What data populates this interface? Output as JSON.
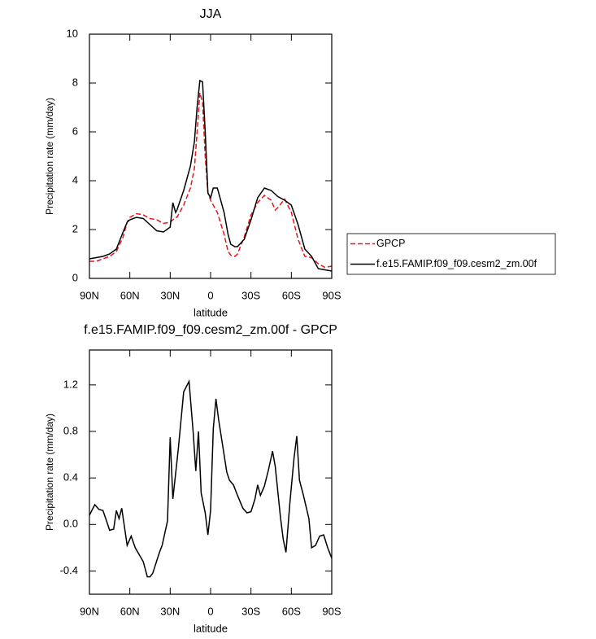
{
  "chart_data": [
    {
      "type": "line",
      "title": "JJA",
      "x_label": "latitude",
      "y_label": "Precipitation rate (mm/day)",
      "x": [
        90,
        85,
        80,
        75,
        70,
        65,
        62,
        60,
        55,
        50,
        45,
        40,
        35,
        30,
        28,
        26,
        25,
        20,
        15,
        12,
        10,
        8,
        6,
        4,
        2,
        0,
        -2,
        -5,
        -10,
        -13,
        -15,
        -18,
        -20,
        -25,
        -30,
        -35,
        -40,
        -45,
        -48,
        -50,
        -55,
        -60,
        -65,
        -70,
        -75,
        -80,
        -85,
        -90
      ],
      "series": [
        {
          "name": "GPCP",
          "color": "#e8141c",
          "line_style": "dashed",
          "values": [
            0.7,
            0.7,
            0.8,
            0.9,
            1.1,
            1.7,
            2.3,
            2.5,
            2.65,
            2.6,
            2.45,
            2.4,
            2.25,
            2.3,
            2.4,
            2.5,
            2.5,
            3.0,
            3.7,
            4.5,
            6.0,
            7.6,
            7.2,
            5.0,
            3.5,
            3.2,
            3.0,
            2.7,
            1.8,
            1.1,
            0.95,
            0.9,
            1.0,
            1.7,
            2.6,
            3.1,
            3.4,
            3.2,
            2.8,
            2.9,
            3.25,
            2.7,
            1.6,
            0.9,
            0.85,
            0.6,
            0.45,
            0.5
          ]
        },
        {
          "name": "f.e15.FAMIP.f09_f09.cesm2_zm.00f",
          "color": "#000000",
          "line_style": "solid",
          "values": [
            0.8,
            0.85,
            0.9,
            1.0,
            1.2,
            1.9,
            2.3,
            2.4,
            2.5,
            2.45,
            2.2,
            1.95,
            1.9,
            2.1,
            3.1,
            2.7,
            2.8,
            3.6,
            4.6,
            5.6,
            7.0,
            8.1,
            8.05,
            6.0,
            3.5,
            3.3,
            3.7,
            3.7,
            2.7,
            1.8,
            1.4,
            1.3,
            1.3,
            1.6,
            2.4,
            3.3,
            3.7,
            3.6,
            3.45,
            3.35,
            3.2,
            3.0,
            2.2,
            1.2,
            0.9,
            0.4,
            0.35,
            0.3
          ]
        }
      ],
      "xlim": [
        90,
        -90
      ],
      "xticks": [
        {
          "value": 90,
          "label": "90N"
        },
        {
          "value": 60,
          "label": "60N"
        },
        {
          "value": 30,
          "label": "30N"
        },
        0,
        {
          "value": -30,
          "label": "30S"
        },
        {
          "value": -60,
          "label": "60S"
        },
        {
          "value": -90,
          "label": "90S"
        }
      ],
      "ylim": [
        0,
        10
      ],
      "yticks": [
        0,
        2,
        4,
        6,
        8,
        10
      ],
      "legend": "right"
    },
    {
      "type": "line",
      "title": "f.e15.FAMIP.f09_f09.cesm2_zm.00f - GPCP",
      "x_label": "latitude",
      "y_label": "Precipitation rate (mm/day)",
      "x": [
        90,
        86,
        83,
        80,
        77,
        75,
        72,
        70,
        68,
        66,
        62,
        59,
        56,
        50,
        47,
        45,
        43,
        38,
        36,
        32,
        30,
        28,
        24,
        20,
        16,
        13,
        11,
        9,
        7,
        4,
        2,
        0,
        -2,
        -4,
        -6,
        -10,
        -12,
        -14,
        -17,
        -20,
        -24,
        -27,
        -30,
        -33,
        -35,
        -37,
        -40,
        -43,
        -46,
        -48,
        -52,
        -54,
        -56,
        -59,
        -62,
        -64,
        -66,
        -69,
        -73,
        -75,
        -78,
        -81,
        -84,
        -87,
        -90
      ],
      "series": [
        {
          "color": "#000000",
          "line_style": "solid",
          "values": [
            0.08,
            0.17,
            0.13,
            0.12,
            0.02,
            -0.05,
            -0.04,
            0.12,
            0.05,
            0.14,
            -0.18,
            -0.1,
            -0.2,
            -0.32,
            -0.45,
            -0.45,
            -0.42,
            -0.24,
            -0.18,
            0.03,
            0.75,
            0.22,
            0.65,
            1.14,
            1.23,
            0.8,
            0.46,
            0.8,
            0.27,
            0.1,
            -0.09,
            0.12,
            0.82,
            1.08,
            0.9,
            0.6,
            0.45,
            0.38,
            0.34,
            0.25,
            0.14,
            0.1,
            0.11,
            0.22,
            0.34,
            0.25,
            0.33,
            0.47,
            0.63,
            0.5,
            0.05,
            -0.13,
            -0.24,
            0.2,
            0.57,
            0.76,
            0.38,
            0.25,
            0.05,
            -0.2,
            -0.18,
            -0.1,
            -0.09,
            -0.2,
            -0.29
          ]
        }
      ],
      "xlim": [
        90,
        -90
      ],
      "xticks": [
        {
          "value": 90,
          "label": "90N"
        },
        {
          "value": 60,
          "label": "60N"
        },
        {
          "value": 30,
          "label": "30N"
        },
        0,
        {
          "value": -30,
          "label": "30S"
        },
        {
          "value": -60,
          "label": "60S"
        },
        {
          "value": -90,
          "label": "90S"
        }
      ],
      "ylim": [
        -0.6,
        1.5
      ],
      "yticks": [
        -0.4,
        {
          "value": 0,
          "label": "0.0"
        },
        0.4,
        0.8,
        1.2
      ]
    }
  ]
}
